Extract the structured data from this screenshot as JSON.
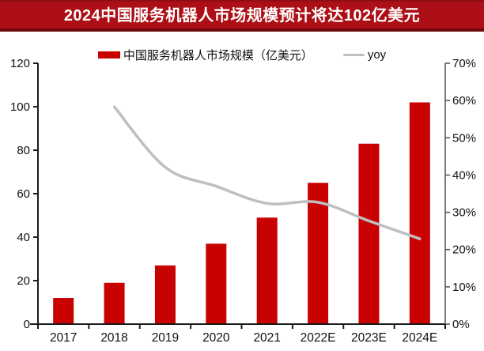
{
  "title": "2024中国服务机器人市场规模预计将达102亿美元",
  "legend": {
    "bar_label": "中国服务机器人市场规模（亿美元）",
    "line_label": "yoy"
  },
  "colors": {
    "title_bg": "#ad0f16",
    "title_border": "#6d090d",
    "title_text": "#ffffff",
    "bar": "#c80101",
    "line": "#bfbfbf",
    "axis": "#1a1a1a",
    "right_axis": "#595959",
    "label_text": "#111111",
    "background": "#ffffff"
  },
  "chart_data": {
    "type": "bar",
    "subtype": "combo-bar-line",
    "categories": [
      "2017",
      "2018",
      "2019",
      "2020",
      "2021",
      "2022E",
      "2023E",
      "2024E"
    ],
    "series": [
      {
        "name": "中国服务机器人市场规模（亿美元）",
        "type": "bar",
        "axis": "left",
        "color": "#c80101",
        "values": [
          12,
          19,
          27,
          37,
          49,
          65,
          83,
          102
        ]
      },
      {
        "name": "yoy",
        "type": "line",
        "axis": "right",
        "color": "#bfbfbf",
        "values": [
          null,
          58.3,
          42.1,
          37.0,
          32.4,
          32.7,
          27.7,
          22.9
        ]
      }
    ],
    "left_axis": {
      "min": 0,
      "max": 120,
      "step": 20,
      "ticks": [
        "0",
        "20",
        "40",
        "60",
        "80",
        "100",
        "120"
      ]
    },
    "right_axis": {
      "min": 0,
      "max": 70,
      "step": 10,
      "ticks": [
        "0%",
        "10%",
        "20%",
        "30%",
        "40%",
        "50%",
        "60%",
        "70%"
      ]
    },
    "grid": false,
    "legend_position": "top",
    "title": "2024中国服务机器人市场规模预计将达102亿美元"
  }
}
